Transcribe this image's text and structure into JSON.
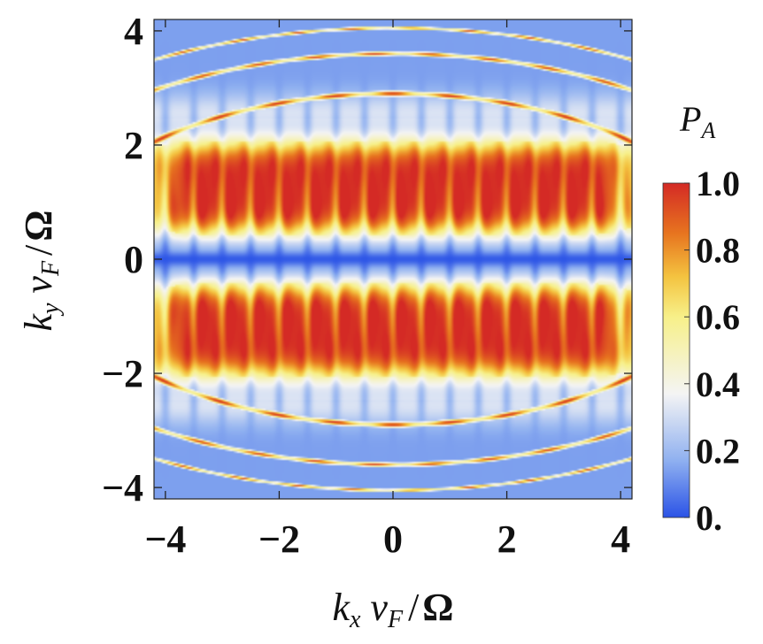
{
  "chart_data": {
    "type": "heatmap",
    "title": "",
    "xlabel": "k_x v_F / Ω",
    "ylabel": "k_y v_F / Ω",
    "xlabel_parts": {
      "k": "k",
      "k_sub": "x",
      "v": "v",
      "v_sub": "F",
      "slash": "/",
      "omega": "Ω"
    },
    "ylabel_parts": {
      "k": "k",
      "k_sub": "y",
      "v": "v",
      "v_sub": "F",
      "slash": "/",
      "omega": "Ω"
    },
    "xlim": [
      -4.2,
      4.2
    ],
    "ylim": [
      -4.2,
      4.2
    ],
    "x_ticks": [
      -4,
      -2,
      0,
      2,
      4
    ],
    "x_tick_labels": [
      "−4",
      "−2",
      "0",
      "2",
      "4"
    ],
    "y_ticks": [
      4,
      2,
      0,
      -2,
      -4
    ],
    "y_tick_labels": [
      "4",
      "2",
      "0",
      "−2",
      "−4"
    ],
    "colorbar": {
      "title_main": "P",
      "title_sub": "A",
      "range": [
        0.0,
        1.0
      ],
      "ticks": [
        1.0,
        0.8,
        0.6,
        0.4,
        0.2,
        0.0
      ],
      "tick_labels": [
        "1.0",
        "0.8",
        "0.6",
        "0.4",
        "0.2",
        "0."
      ],
      "colormap": [
        "#2b53e6",
        "#8fb0f0",
        "#f4f4f4",
        "#f7f089",
        "#f4c340",
        "#e7741f",
        "#d42a25"
      ]
    },
    "features": {
      "low_band_along": "k_y = 0",
      "high_region": "|k_y| between 0.3 and 2.3",
      "resonance_rings_ky": [
        2.9,
        3.6,
        4.05
      ],
      "vertical_modulation_period_kx": 0.5
    }
  }
}
